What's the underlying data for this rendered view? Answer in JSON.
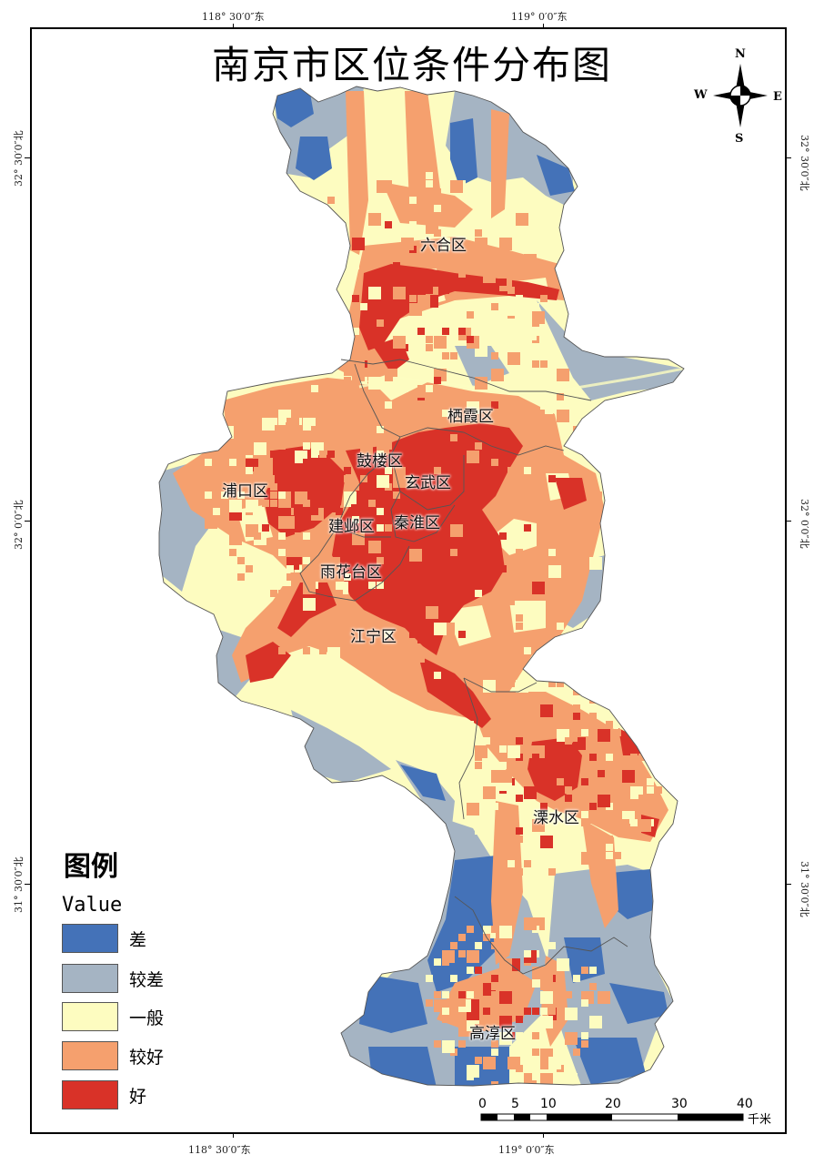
{
  "map": {
    "title": "南京市区位条件分布图",
    "colors": {
      "poor": "#4472b8",
      "fairly_poor": "#a5b4c3",
      "medium": "#fdfcc0",
      "fairly_good": "#f5a06e",
      "good": "#d93228",
      "boundary": "#555555"
    },
    "coordinates": {
      "top_left": "118° 30′0″东",
      "top_right": "119° 0′0″东",
      "bottom_left": "118° 30′0″东",
      "bottom_right": "119° 0′0″东",
      "left_top": "32° 30′0″北",
      "left_mid": "32° 0′0″北",
      "left_bottom": "31° 30′0″北",
      "right_top": "32° 30′0″北",
      "right_mid": "32° 0′0″北",
      "right_bottom": "31° 30′0″北"
    },
    "districts": {
      "luhe": "六合区",
      "qixia": "栖霞区",
      "gulou": "鼓楼区",
      "xuanwu": "玄武区",
      "pukou": "浦口区",
      "jianye": "建邺区",
      "qinhuai": "秦淮区",
      "yuhuatai": "雨花台区",
      "jiangning": "江宁区",
      "lishui": "溧水区",
      "gaochun": "高淳区"
    },
    "compass": {
      "n": "N",
      "s": "S",
      "e": "E",
      "w": "W"
    },
    "legend": {
      "title": "图例",
      "subtitle": "Value",
      "items": [
        {
          "label": "差",
          "color": "#4472b8"
        },
        {
          "label": "较差",
          "color": "#a5b4c3"
        },
        {
          "label": "一般",
          "color": "#fdfcc0"
        },
        {
          "label": "较好",
          "color": "#f5a06e"
        },
        {
          "label": "好",
          "color": "#d93228"
        }
      ]
    },
    "scale": {
      "ticks": [
        "0",
        "5",
        "10",
        "20",
        "30",
        "40"
      ],
      "unit": "千米"
    }
  }
}
